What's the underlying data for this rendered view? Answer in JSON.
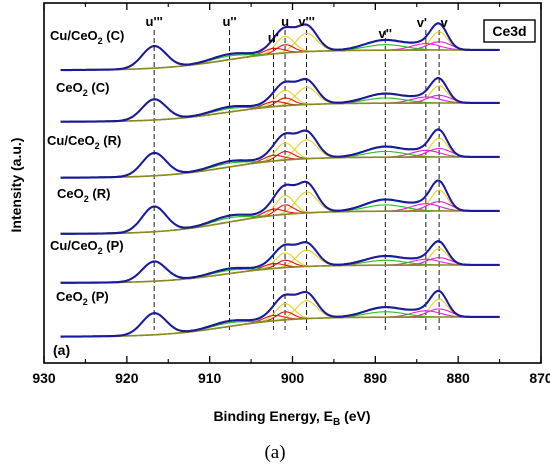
{
  "chart_data": {
    "type": "line",
    "corner_label": "Ce3d",
    "panel_label": "(a)",
    "xlabel": {
      "main": "Binding Energy, E",
      "sub": "B",
      "unit": " (eV)"
    },
    "ylabel": "Intensity (a.u.)",
    "xlim": [
      930,
      870
    ],
    "x_reversed": true,
    "x_ticks": [
      930,
      920,
      910,
      900,
      890,
      880,
      870
    ],
    "reference_lines": [
      {
        "label": "u'''",
        "x": 916.7
      },
      {
        "label": "u''",
        "x": 907.6
      },
      {
        "label": "u'",
        "x": 902.3
      },
      {
        "label": "u",
        "x": 900.9
      },
      {
        "label": "v'''",
        "x": 898.3
      },
      {
        "label": "v''",
        "x": 888.8
      },
      {
        "label": "v'",
        "x": 883.9
      },
      {
        "label": "v",
        "x": 882.3
      }
    ],
    "samples": [
      {
        "label": {
          "pre": "Cu/CeO",
          "sub": "2",
          "post": " (C)"
        }
      },
      {
        "label": {
          "pre": "CeO",
          "sub": "2",
          "post": " (C)"
        }
      },
      {
        "label": {
          "pre": "Cu/CeO",
          "sub": "2",
          "post": " (R)"
        }
      },
      {
        "label": {
          "pre": "CeO",
          "sub": "2",
          "post": " (R)"
        }
      },
      {
        "label": {
          "pre": "Cu/CeO",
          "sub": "2",
          "post": " (P)"
        }
      },
      {
        "label": {
          "pre": "CeO",
          "sub": "2",
          "post": " (P)"
        }
      }
    ],
    "colors": {
      "fit": "#1a1aa0",
      "raw": "#000000",
      "background": "#8a8a20",
      "ce3_u": "#e01010",
      "ce3_v": "#e020e0",
      "comp_green": "#20c020",
      "comp_yellow": "#e8d020"
    }
  },
  "caption": "(a)"
}
